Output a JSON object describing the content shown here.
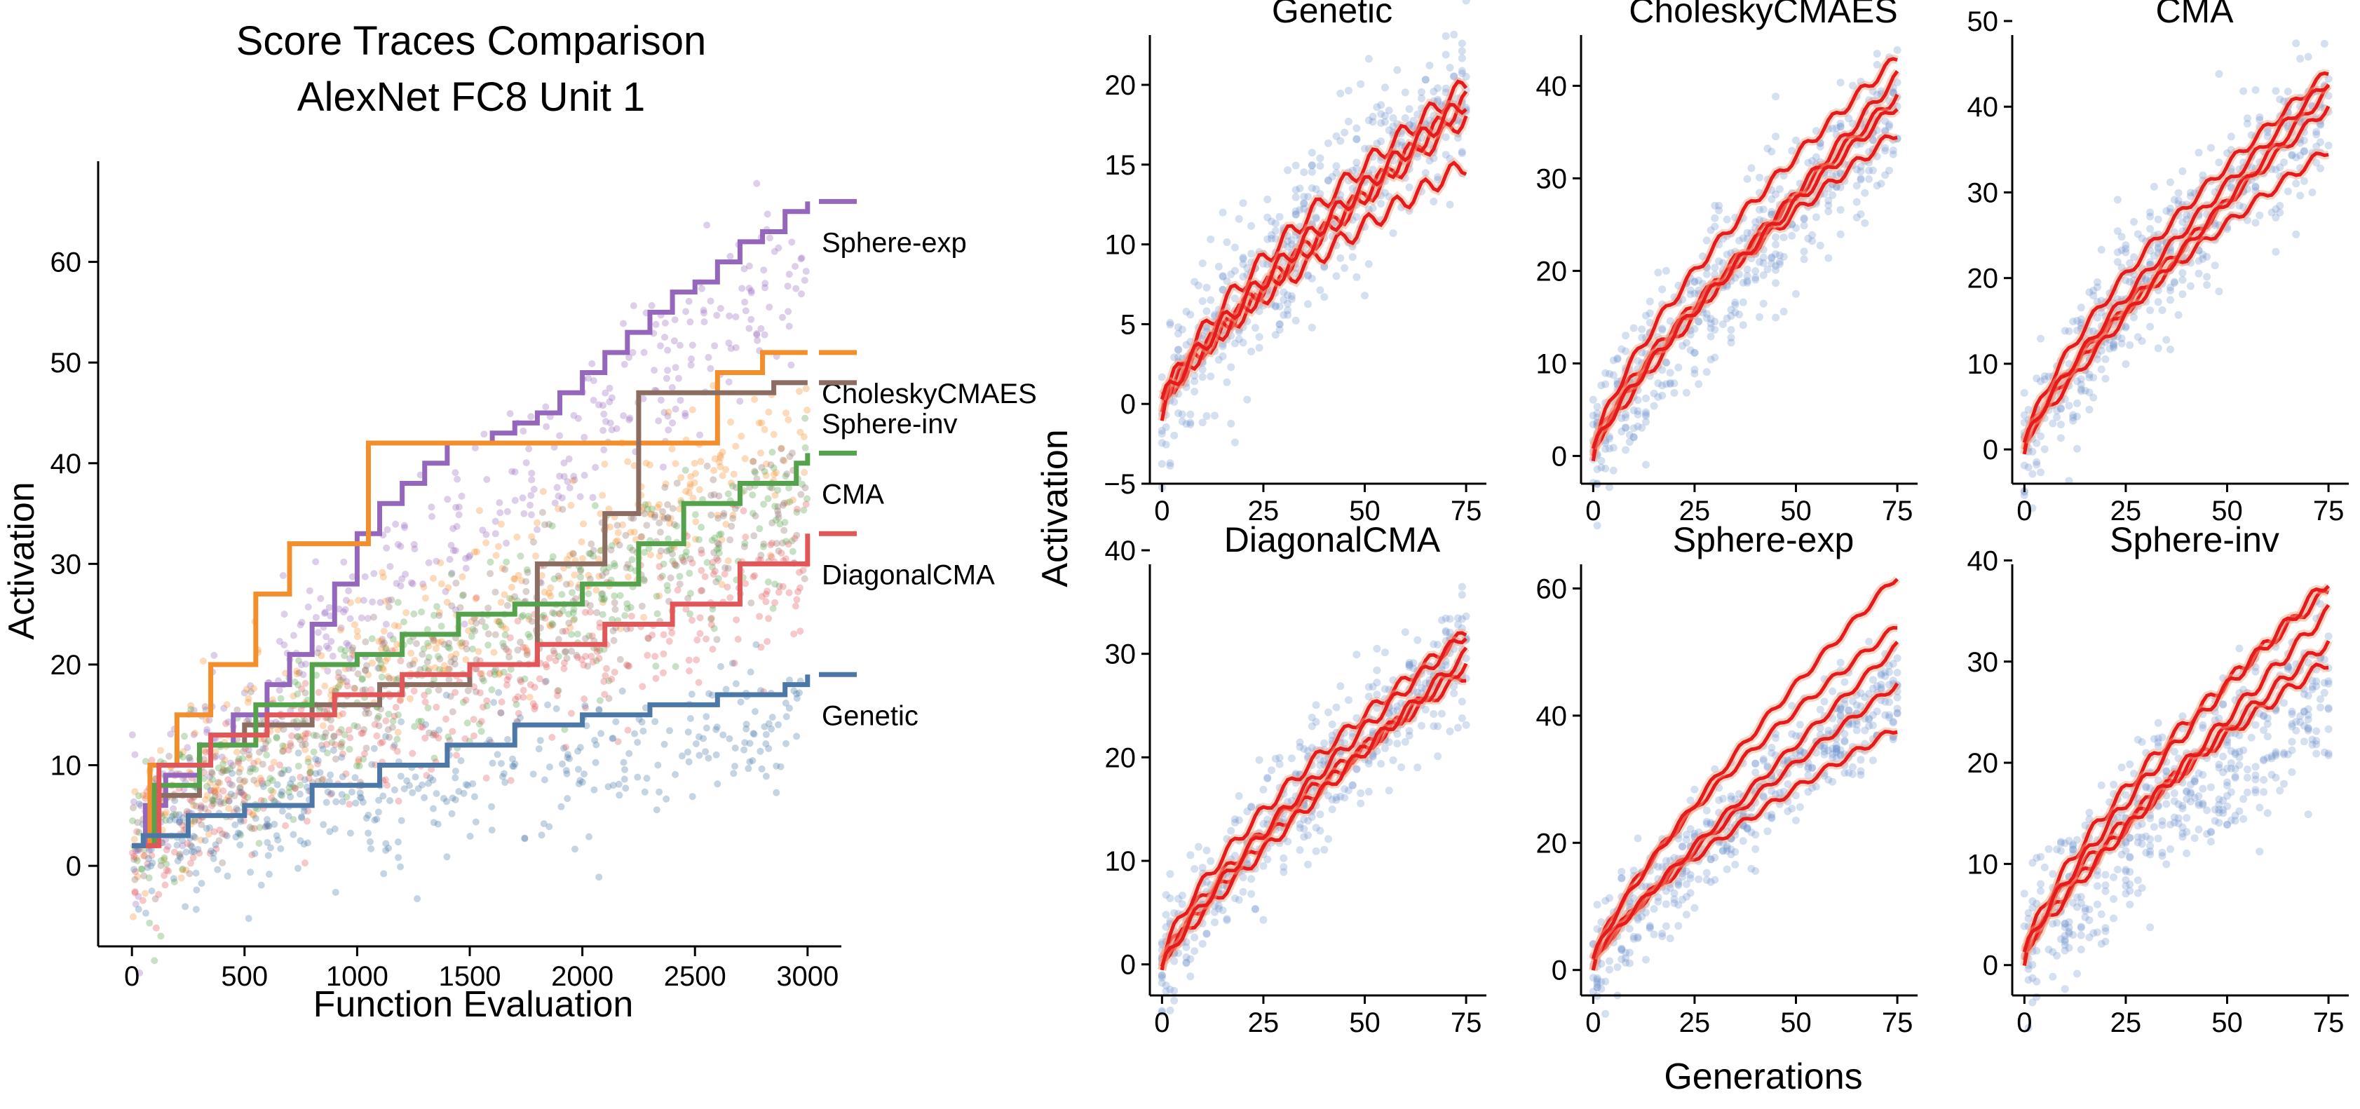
{
  "chart_data": [
    {
      "type": "line",
      "subtype": "step-with-scatter",
      "title_lines": [
        "Score Traces Comparison",
        "AlexNet FC8 Unit 1"
      ],
      "xlabel": "Function Evaluation",
      "ylabel": "Activation",
      "xlim": [
        -150,
        3150
      ],
      "ylim": [
        -8,
        70
      ],
      "xticks": [
        0,
        500,
        1000,
        1500,
        2000,
        2500,
        3000
      ],
      "yticks": [
        0,
        10,
        20,
        30,
        40,
        50,
        60
      ],
      "legend_position": "right",
      "series": [
        {
          "name": "Sphere-exp",
          "color": "#9467bd",
          "final_value": 66,
          "steps_x": [
            0,
            60,
            150,
            300,
            450,
            600,
            700,
            800,
            900,
            1000,
            1100,
            1200,
            1300,
            1400,
            1500,
            1600,
            1700,
            1800,
            1900,
            2000,
            2100,
            2200,
            2300,
            2400,
            2500,
            2600,
            2700,
            2800,
            2900,
            3000
          ],
          "steps_y": [
            2,
            6,
            9,
            12,
            15,
            18,
            21,
            24,
            28,
            33,
            36,
            38,
            40,
            42,
            42,
            43,
            44,
            45,
            47,
            49,
            51,
            53,
            55,
            57,
            58,
            60,
            62,
            63,
            65,
            66
          ],
          "scatter_start": [
            0,
            2
          ],
          "scatter_end": [
            3000,
            60
          ],
          "scatter_spread": 4
        },
        {
          "name": "CholeskyCMAES",
          "color": "#f28e2b",
          "final_value": 51,
          "steps_x": [
            0,
            80,
            200,
            350,
            550,
            700,
            900,
            1050,
            1550,
            1750,
            2100,
            2300,
            2600,
            2800,
            3000
          ],
          "steps_y": [
            2,
            10,
            15,
            20,
            27,
            32,
            32,
            42,
            42,
            42,
            42,
            42,
            49,
            51,
            51
          ],
          "scatter_start": [
            0,
            2
          ],
          "scatter_end": [
            3000,
            43
          ],
          "scatter_spread": 4
        },
        {
          "name": "Sphere-inv",
          "color": "#8c6d62",
          "final_value": 48,
          "steps_x": [
            0,
            100,
            300,
            500,
            800,
            1100,
            1500,
            1800,
            2100,
            2250,
            2600,
            2850,
            3000
          ],
          "steps_y": [
            2,
            7,
            12,
            14,
            16,
            18,
            20,
            30,
            35,
            47,
            47,
            48,
            48
          ],
          "scatter_start": [
            0,
            2
          ],
          "scatter_end": [
            3000,
            37
          ],
          "scatter_spread": 4
        },
        {
          "name": "CMA",
          "color": "#54a24b",
          "final_value": 41,
          "steps_x": [
            0,
            100,
            300,
            550,
            800,
            1000,
            1200,
            1450,
            1700,
            2000,
            2250,
            2450,
            2700,
            2950,
            3000
          ],
          "steps_y": [
            2,
            8,
            12,
            16,
            20,
            21,
            23,
            25,
            26,
            28,
            32,
            36,
            38,
            40,
            41
          ],
          "scatter_start": [
            0,
            2
          ],
          "scatter_end": [
            3000,
            36
          ],
          "scatter_spread": 4
        },
        {
          "name": "DiagonalCMA",
          "color": "#e15759",
          "final_value": 33,
          "steps_x": [
            0,
            120,
            350,
            600,
            900,
            1200,
            1500,
            1800,
            2100,
            2400,
            2700,
            3000
          ],
          "steps_y": [
            2,
            10,
            13,
            15,
            17,
            19,
            20,
            22,
            24,
            26,
            30,
            33
          ],
          "scatter_start": [
            0,
            2
          ],
          "scatter_end": [
            3000,
            28
          ],
          "scatter_spread": 4
        },
        {
          "name": "Genetic",
          "color": "#4c78a8",
          "final_value": 19,
          "steps_x": [
            0,
            50,
            250,
            500,
            800,
            1100,
            1400,
            1700,
            2000,
            2300,
            2600,
            2900,
            3000
          ],
          "steps_y": [
            2,
            3,
            5,
            6,
            8,
            10,
            12,
            14,
            15,
            16,
            17,
            18,
            19
          ],
          "scatter_start": [
            0,
            1
          ],
          "scatter_end": [
            3000,
            14
          ],
          "scatter_spread": 3.5
        }
      ]
    },
    {
      "type": "scatter-line-grid",
      "shared_xlabel": "Generations",
      "shared_ylabel": "Activation",
      "line_color": "#e41a1c",
      "scatter_color": "#6f95cc",
      "panels": [
        {
          "title": "Genetic",
          "xlim": [
            -3,
            80
          ],
          "ylim": [
            -5,
            24
          ],
          "xticks": [
            0,
            25,
            50,
            75
          ],
          "yticks": [
            -5,
            0,
            5,
            10,
            15,
            20
          ],
          "lines_end": [
            15,
            18,
            19,
            20,
            19
          ],
          "lines_start": [
            -0.5,
            0,
            0.5,
            -0.5,
            0
          ],
          "scatter_start": -0.5,
          "scatter_end": 20,
          "scatter_spread": 2.5
        },
        {
          "title": "CholeskyCMAES",
          "xlim": [
            -3,
            80
          ],
          "ylim": [
            -3,
            47
          ],
          "xticks": [
            0,
            25,
            50,
            75
          ],
          "yticks": [
            0,
            10,
            20,
            30,
            40
          ],
          "lines_end": [
            35,
            39,
            41,
            43,
            38
          ],
          "lines_start": [
            0,
            0.5,
            1,
            0,
            0.5
          ],
          "scatter_start": 0,
          "scatter_end": 37,
          "scatter_spread": 4
        },
        {
          "title": "CMA",
          "xlim": [
            -3,
            80
          ],
          "ylim": [
            -4,
            50
          ],
          "xticks": [
            0,
            25,
            50,
            75
          ],
          "yticks": [
            0,
            10,
            20,
            30,
            40,
            50
          ],
          "lines_end": [
            35,
            40,
            42,
            44,
            43
          ],
          "lines_start": [
            0,
            0.5,
            1,
            0,
            0.5
          ],
          "scatter_start": 0,
          "scatter_end": 41,
          "scatter_spread": 4
        },
        {
          "title": "DiagonalCMA",
          "xlim": [
            -3,
            80
          ],
          "ylim": [
            -3,
            40
          ],
          "xticks": [
            0,
            25,
            50,
            75
          ],
          "yticks": [
            0,
            10,
            20,
            30,
            40
          ],
          "lines_end": [
            28,
            29,
            30,
            32,
            32
          ],
          "lines_start": [
            -0.5,
            0,
            0.5,
            0,
            -0.5
          ],
          "scatter_start": 0,
          "scatter_end": 30,
          "scatter_spread": 3
        },
        {
          "title": "Sphere-exp",
          "xlim": [
            -3,
            80
          ],
          "ylim": [
            -4,
            66
          ],
          "xticks": [
            0,
            25,
            50,
            75
          ],
          "yticks": [
            0,
            20,
            40,
            60
          ],
          "lines_end": [
            38,
            45,
            51,
            54,
            62
          ],
          "lines_start": [
            0,
            1,
            2,
            0.5,
            1.5
          ],
          "scatter_start": 0,
          "scatter_end": 44,
          "scatter_spread": 4
        },
        {
          "title": "Sphere-inv",
          "xlim": [
            -3,
            80
          ],
          "ylim": [
            -3,
            41
          ],
          "xticks": [
            0,
            25,
            50,
            75
          ],
          "yticks": [
            0,
            10,
            20,
            30,
            40
          ],
          "lines_end": [
            30,
            32,
            35,
            37,
            38
          ],
          "lines_start": [
            0.5,
            1,
            1.5,
            0.5,
            1
          ],
          "scatter_start": 1,
          "scatter_end": 28,
          "scatter_spread": 4
        }
      ]
    }
  ]
}
